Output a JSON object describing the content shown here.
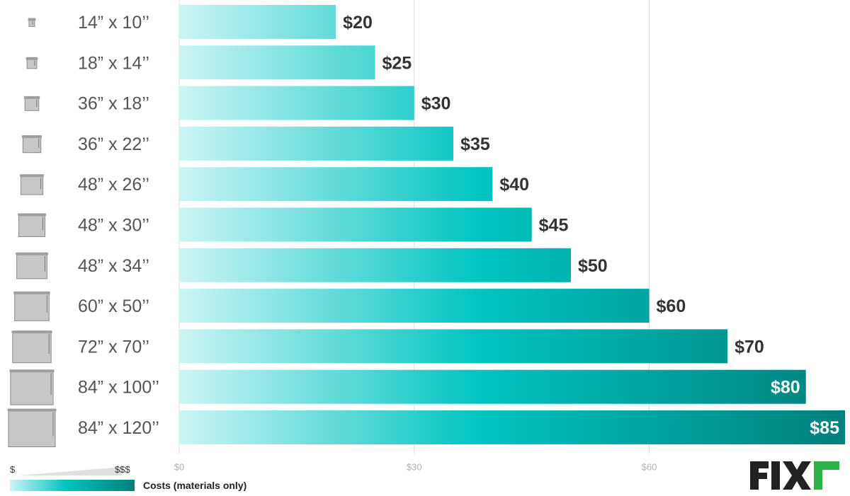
{
  "chart_data": {
    "type": "bar",
    "orientation": "horizontal",
    "categories": [
      "14” x 10’’",
      "18” x 14’’",
      "36” x 18’’",
      "36” x 22’’",
      "48” x 26’’",
      "48” x 30’’",
      "48” x 34’’",
      "60” x 50’’",
      "72” x 70’’",
      "84” x 100’’",
      "84” x 120’’"
    ],
    "values": [
      20,
      25,
      30,
      35,
      40,
      45,
      50,
      60,
      70,
      80,
      85
    ],
    "value_labels": [
      "$20",
      "$25",
      "$30",
      "$35",
      "$40",
      "$45",
      "$50",
      "$60",
      "$70",
      "$80",
      "$85"
    ],
    "xlim": [
      0,
      85
    ],
    "x_ticks": [
      0,
      30,
      60
    ],
    "x_tick_labels": [
      "$0",
      "$30",
      "$60"
    ],
    "grid": true,
    "legend_placement": "bottom-left"
  },
  "legend": {
    "min_label": "$",
    "max_label": "$$$",
    "caption": "Costs (materials only)"
  },
  "logo": {
    "text": "FIXr",
    "color": "#222222",
    "accent": "#2db24a"
  },
  "colors": {
    "gradient_start": "#ccf5f4",
    "gradient_mid": "#00c4c1",
    "gradient_end": "#00807c",
    "label_text": "#333333",
    "gridline": "#dddddd",
    "icon_gray": "#bdbdbd"
  }
}
